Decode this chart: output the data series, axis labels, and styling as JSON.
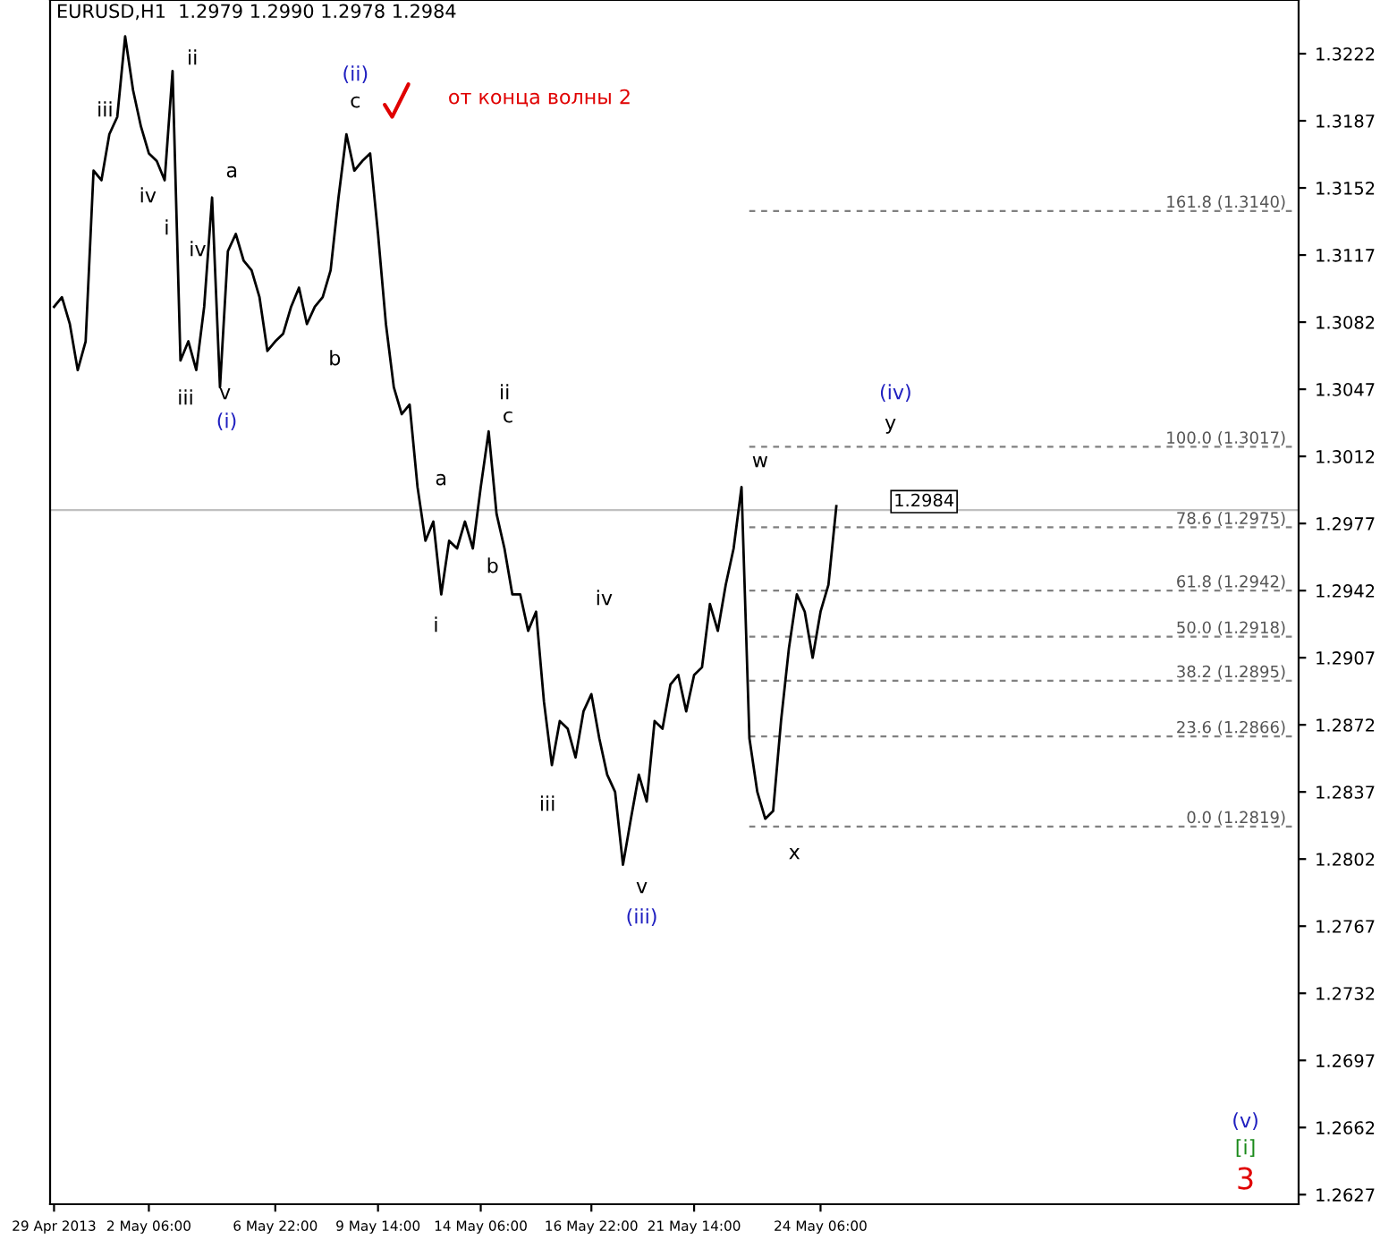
{
  "chart_data": {
    "type": "line",
    "title": "EURUSD,H1  1.2979 1.2990 1.2978 1.2984",
    "categories": [
      "29 Apr 2013",
      null,
      null,
      null,
      null,
      null,
      null,
      null,
      null,
      null,
      null,
      null,
      "2 May 06:00",
      null,
      null,
      null,
      null,
      null,
      null,
      null,
      null,
      null,
      null,
      null,
      null,
      null,
      null,
      null,
      "6 May 22:00",
      null,
      null,
      null,
      null,
      null,
      null,
      null,
      null,
      null,
      null,
      null,
      null,
      "9 May 14:00",
      null,
      null,
      null,
      null,
      null,
      null,
      null,
      null,
      null,
      null,
      null,
      null,
      "14 May 06:00",
      null,
      null,
      null,
      null,
      null,
      null,
      null,
      null,
      null,
      null,
      null,
      null,
      null,
      "16 May 22:00",
      null,
      null,
      null,
      null,
      null,
      null,
      null,
      null,
      null,
      null,
      null,
      null,
      "21 May 14:00",
      null,
      null,
      null,
      null,
      null,
      null,
      null,
      null,
      null,
      null,
      null,
      null,
      null,
      null,
      null,
      "24 May 06:00",
      null,
      null,
      null,
      null,
      null,
      null,
      null,
      null,
      null,
      null,
      null,
      null,
      null,
      null,
      null,
      null,
      null,
      null,
      null,
      null,
      null,
      null,
      null,
      null,
      null,
      null,
      null,
      null,
      null,
      null,
      null,
      null,
      null,
      null,
      null,
      null,
      null,
      null,
      null,
      null,
      null,
      null,
      null,
      null,
      null,
      null,
      null,
      null,
      null,
      null,
      null,
      null,
      null,
      null,
      null,
      null,
      null,
      null,
      null,
      null
    ],
    "ylim": [
      1.2622,
      1.325
    ],
    "yticks": [
      1.3222,
      1.3187,
      1.3152,
      1.3117,
      1.3082,
      1.3047,
      1.3012,
      1.2977,
      1.2942,
      1.2907,
      1.2872,
      1.2837,
      1.2802,
      1.2767,
      1.2732,
      1.2697,
      1.2662,
      1.2627
    ],
    "grid": false,
    "legend": false,
    "series": [
      {
        "color": "#000000",
        "values": [
          1.309,
          1.3095,
          1.3081,
          1.3057,
          1.3072,
          1.3161,
          1.3156,
          1.318,
          1.3189,
          1.3231,
          1.3203,
          1.3184,
          1.317,
          1.3166,
          1.3156,
          1.3213,
          1.3062,
          1.3072,
          1.3057,
          1.309,
          1.3147,
          1.3048,
          1.3119,
          1.3128,
          1.3114,
          1.3109,
          1.3095,
          1.3067,
          1.3072,
          1.3076,
          1.309,
          1.31,
          1.3081,
          1.309,
          1.3095,
          1.3109,
          1.3147,
          1.318,
          1.3161,
          1.3166,
          1.317,
          1.3128,
          1.3081,
          1.3048,
          1.3034,
          1.3039,
          1.2996,
          1.2968,
          1.2978,
          1.294,
          1.2968,
          1.2964,
          1.2978,
          1.2964,
          1.2996,
          1.3025,
          1.2982,
          1.2964,
          1.294,
          1.294,
          1.2921,
          1.2931,
          1.2884,
          1.2851,
          1.2874,
          1.287,
          1.2855,
          1.2879,
          1.2888,
          1.2865,
          1.2846,
          1.2837,
          1.2799,
          1.2823,
          1.2846,
          1.2832,
          1.2874,
          1.287,
          1.2893,
          1.2898,
          1.2879,
          1.2898,
          1.2902,
          1.2935,
          1.2921,
          1.2945,
          1.2964,
          1.2996,
          1.2865,
          1.2837,
          1.2823,
          1.2827,
          1.2874,
          1.2912,
          1.294,
          1.2931,
          1.2907,
          1.2931,
          1.2945,
          1.2986,
          null,
          null,
          null,
          null,
          null,
          null,
          null,
          null,
          null,
          null,
          null,
          null,
          null,
          null,
          null,
          null,
          null,
          null,
          null,
          null,
          null,
          null,
          null,
          null,
          null,
          null,
          null,
          null,
          null,
          null,
          null,
          null,
          null,
          null,
          null,
          null,
          null,
          null,
          null,
          null,
          null,
          null,
          null,
          null,
          null,
          null,
          null,
          null,
          null,
          null,
          null,
          null,
          null,
          null,
          null,
          null,
          null,
          null
        ]
      }
    ],
    "ref_lines": [
      {
        "axis": "y",
        "value": 1.314,
        "label": "161.8 (1.3140)",
        "color": "#808080",
        "line_style": "dashed"
      },
      {
        "axis": "y",
        "value": 1.3017,
        "label": "100.0 (1.3017)",
        "color": "#808080",
        "line_style": "dashed"
      },
      {
        "axis": "y",
        "value": 1.2975,
        "label": "78.6 (1.2975)",
        "color": "#808080",
        "line_style": "dashed"
      },
      {
        "axis": "y",
        "value": 1.2942,
        "label": "61.8 (1.2942)",
        "color": "#808080",
        "line_style": "dashed"
      },
      {
        "axis": "y",
        "value": 1.2918,
        "label": "50.0 (1.2918)",
        "color": "#808080",
        "line_style": "dashed"
      },
      {
        "axis": "y",
        "value": 1.2895,
        "label": "38.2 (1.2895)",
        "color": "#808080",
        "line_style": "dashed"
      },
      {
        "axis": "y",
        "value": 1.2866,
        "label": "23.6 (1.2866)",
        "color": "#808080",
        "line_style": "dashed"
      },
      {
        "axis": "y",
        "value": 1.2819,
        "label": "0.0 (1.2819)",
        "color": "#808080",
        "line_style": "dashed"
      },
      {
        "axis": "y",
        "value": 1.2984,
        "label": "1.2984",
        "color": "#c0c0c0",
        "line_style": "solid"
      }
    ],
    "annotations": [
      "iii",
      "iv",
      "i",
      "ii",
      "iii",
      "v",
      "(i)",
      "a",
      "iv",
      "(ii)",
      "c",
      "b",
      "от конца волны 2",
      "ii",
      "c",
      "a",
      "b",
      "i",
      "iv",
      "iii",
      "v",
      "(iii)",
      "w",
      "x",
      "(iv)",
      "y",
      "(v)",
      "[i]",
      "3"
    ]
  }
}
